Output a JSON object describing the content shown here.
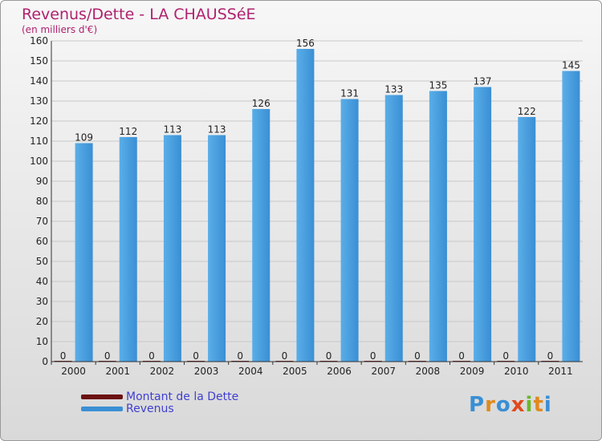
{
  "title": "Revenus/Dette - LA CHAUSSéE",
  "subtitle": "(en milliers d'€)",
  "logo_text": "Proxiti",
  "colors": {
    "dette": "#6b1010",
    "revenus": "#3a8fd4",
    "title": "#b0216e"
  },
  "chart_data": {
    "type": "bar",
    "categories": [
      "2000",
      "2001",
      "2002",
      "2003",
      "2004",
      "2005",
      "2006",
      "2007",
      "2008",
      "2009",
      "2010",
      "2011"
    ],
    "series": [
      {
        "name": "Montant de la Dette",
        "values": [
          0,
          0,
          0,
          0,
          0,
          0,
          0,
          0,
          0,
          0,
          0,
          0
        ]
      },
      {
        "name": "Revenus",
        "values": [
          109,
          112,
          113,
          113,
          126,
          156,
          131,
          133,
          135,
          137,
          122,
          145
        ]
      }
    ],
    "ylim": [
      0,
      160
    ],
    "yticks": [
      0,
      10,
      20,
      30,
      40,
      50,
      60,
      70,
      80,
      90,
      100,
      110,
      120,
      130,
      140,
      150,
      160
    ],
    "grid": true,
    "legend_position": "bottom-left"
  }
}
